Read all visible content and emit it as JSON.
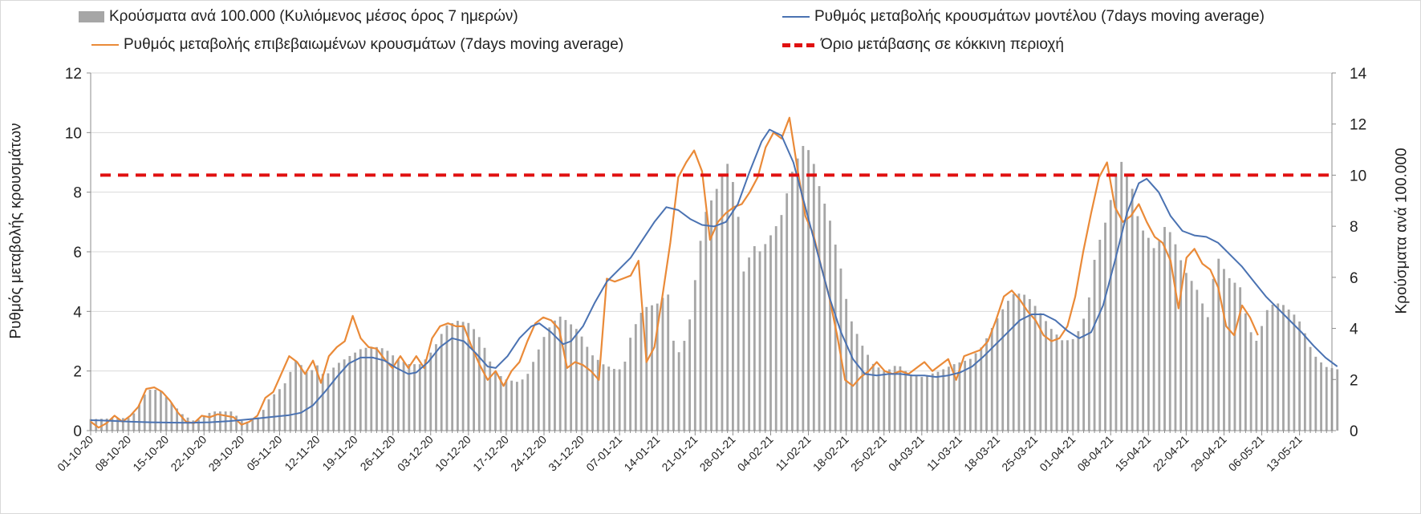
{
  "chart_data": {
    "type": "bar",
    "legend": [
      {
        "key": "bars",
        "label": "Κρούσματα ανά 100.000 (Κυλιόμενος μέσος όρος 7 ημερών)",
        "color": "#a6a6a6"
      },
      {
        "key": "model",
        "label": "Ρυθμός μεταβολής κρουσμάτων μοντέλου (7days moving average)",
        "color": "#4a72b2"
      },
      {
        "key": "confirmed",
        "label": "Ρυθμός μεταβολής επιβεβαιωμένων κρουσμάτων (7days moving average)",
        "color": "#ea8a38"
      },
      {
        "key": "threshold",
        "label": "Όριο μετάβασης σε κόκκινη περιοχή",
        "color": "#e01010"
      }
    ],
    "ylabel_left": "Ρυθμός μεταβολής κρουσμάτων",
    "ylabel_right": "Κρούσματα ανά 100.000",
    "ylim_left": [
      0,
      12
    ],
    "ylim_right": [
      0,
      14
    ],
    "yticks_left": [
      "0",
      "2",
      "4",
      "6",
      "8",
      "10",
      "12"
    ],
    "yticks_right": [
      "0",
      "2",
      "4",
      "6",
      "8",
      "10",
      "12",
      "14"
    ],
    "xtick_labels": [
      "01-10-20",
      "08-10-20",
      "15-10-20",
      "22-10-20",
      "29-10-20",
      "05-11-20",
      "12-11-20",
      "19-11-20",
      "26-11-20",
      "03-12-20",
      "10-12-20",
      "17-12-20",
      "24-12-20",
      "31-12-20",
      "07-01-21",
      "14-01-21",
      "21-01-21",
      "28-01-21",
      "04-02-21",
      "11-02-21",
      "18-02-21",
      "25-02-21",
      "04-03-21",
      "11-03-21",
      "18-03-21",
      "25-03-21",
      "01-04-21",
      "08-04-21",
      "15-04-21",
      "22-04-21",
      "29-04-21",
      "06-05-21",
      "13-05-21"
    ],
    "days": 232,
    "threshold_right_axis": 10,
    "bars_knots": [
      [
        0,
        0.45
      ],
      [
        10,
        0.5
      ],
      [
        12,
        1.0
      ],
      [
        14,
        1.6
      ],
      [
        17,
        1.6
      ],
      [
        20,
        1.1
      ],
      [
        23,
        0.6
      ],
      [
        26,
        0.35
      ],
      [
        30,
        0.75
      ],
      [
        35,
        0.75
      ],
      [
        38,
        0.3
      ],
      [
        42,
        0.55
      ],
      [
        44,
        1.2
      ],
      [
        48,
        1.8
      ],
      [
        51,
        2.8
      ],
      [
        54,
        2.2
      ],
      [
        56,
        2.6
      ],
      [
        58,
        2.1
      ],
      [
        61,
        2.6
      ],
      [
        64,
        2.9
      ],
      [
        67,
        3.2
      ],
      [
        70,
        3.3
      ],
      [
        73,
        3.2
      ],
      [
        76,
        2.8
      ],
      [
        79,
        2.6
      ],
      [
        82,
        2.6
      ],
      [
        85,
        3.2
      ],
      [
        88,
        4.1
      ],
      [
        91,
        4.3
      ],
      [
        94,
        4.2
      ],
      [
        97,
        3.5
      ],
      [
        100,
        2.3
      ],
      [
        103,
        2.0
      ],
      [
        106,
        1.9
      ],
      [
        108,
        2.1
      ],
      [
        110,
        2.8
      ],
      [
        113,
        3.9
      ],
      [
        116,
        4.5
      ],
      [
        118,
        4.3
      ],
      [
        121,
        3.9
      ],
      [
        124,
        3.0
      ],
      [
        127,
        2.6
      ],
      [
        130,
        2.4
      ],
      [
        132,
        2.4
      ],
      [
        134,
        3.8
      ],
      [
        137,
        4.8
      ],
      [
        141,
        5.0
      ],
      [
        143,
        5.5
      ],
      [
        145,
        2.8
      ],
      [
        148,
        3.8
      ],
      [
        152,
        8.4
      ],
      [
        155,
        9.4
      ],
      [
        158,
        10.5
      ],
      [
        160,
        9.2
      ],
      [
        162,
        6.0
      ],
      [
        164,
        7.3
      ],
      [
        166,
        7.0
      ],
      [
        168,
        7.5
      ],
      [
        171,
        8.3
      ],
      [
        174,
        10.2
      ],
      [
        177,
        11.3
      ],
      [
        179,
        10.6
      ],
      [
        181,
        9.3
      ],
      [
        183,
        8.4
      ],
      [
        186,
        6.3
      ],
      [
        188,
        4.5
      ],
      [
        191,
        3.4
      ],
      [
        194,
        2.6
      ],
      [
        197,
        2.3
      ],
      [
        200,
        2.6
      ],
      [
        203,
        2.2
      ],
      [
        206,
        2.1
      ],
      [
        210,
        2.3
      ],
      [
        214,
        2.6
      ],
      [
        218,
        2.8
      ],
      [
        221,
        3.3
      ],
      [
        224,
        4.2
      ],
      [
        227,
        5.0
      ],
      [
        229,
        5.4
      ],
      [
        232,
        5.3
      ],
      [
        235,
        4.7
      ],
      [
        238,
        4.0
      ],
      [
        241,
        3.5
      ],
      [
        244,
        3.6
      ],
      [
        247,
        4.7
      ],
      [
        249,
        6.9
      ],
      [
        252,
        8.4
      ],
      [
        255,
        10.7
      ],
      [
        258,
        9.6
      ],
      [
        260,
        8.0
      ],
      [
        262,
        7.6
      ],
      [
        264,
        7.0
      ],
      [
        266,
        8.0
      ],
      [
        268,
        7.7
      ],
      [
        271,
        6.3
      ],
      [
        274,
        5.6
      ],
      [
        277,
        4.4
      ],
      [
        279,
        6.9
      ],
      [
        282,
        6.0
      ],
      [
        285,
        5.6
      ],
      [
        287,
        4.0
      ],
      [
        289,
        3.5
      ],
      [
        292,
        4.9
      ],
      [
        295,
        5.0
      ],
      [
        298,
        4.6
      ],
      [
        300,
        4.2
      ],
      [
        303,
        3.0
      ],
      [
        306,
        2.5
      ],
      [
        309,
        2.4
      ]
    ],
    "model_knots": [
      [
        0,
        0.35
      ],
      [
        5,
        0.33
      ],
      [
        10,
        0.3
      ],
      [
        15,
        0.28
      ],
      [
        20,
        0.27
      ],
      [
        25,
        0.26
      ],
      [
        30,
        0.28
      ],
      [
        35,
        0.32
      ],
      [
        40,
        0.38
      ],
      [
        45,
        0.45
      ],
      [
        50,
        0.52
      ],
      [
        53,
        0.6
      ],
      [
        56,
        0.85
      ],
      [
        59,
        1.3
      ],
      [
        62,
        1.8
      ],
      [
        65,
        2.25
      ],
      [
        68,
        2.45
      ],
      [
        71,
        2.45
      ],
      [
        74,
        2.35
      ],
      [
        77,
        2.1
      ],
      [
        80,
        1.9
      ],
      [
        82,
        1.95
      ],
      [
        85,
        2.3
      ],
      [
        88,
        2.8
      ],
      [
        91,
        3.1
      ],
      [
        94,
        3.0
      ],
      [
        97,
        2.6
      ],
      [
        100,
        2.15
      ],
      [
        102,
        2.1
      ],
      [
        105,
        2.5
      ],
      [
        108,
        3.1
      ],
      [
        111,
        3.5
      ],
      [
        113,
        3.6
      ],
      [
        116,
        3.3
      ],
      [
        119,
        2.9
      ],
      [
        121,
        3.0
      ],
      [
        124,
        3.5
      ],
      [
        127,
        4.3
      ],
      [
        130,
        5.0
      ],
      [
        133,
        5.4
      ],
      [
        136,
        5.8
      ],
      [
        139,
        6.4
      ],
      [
        142,
        7.0
      ],
      [
        145,
        7.5
      ],
      [
        148,
        7.4
      ],
      [
        151,
        7.1
      ],
      [
        154,
        6.9
      ],
      [
        157,
        6.85
      ],
      [
        160,
        7.0
      ],
      [
        163,
        7.6
      ],
      [
        166,
        8.7
      ],
      [
        169,
        9.7
      ],
      [
        171,
        10.1
      ],
      [
        174,
        9.9
      ],
      [
        177,
        9.0
      ],
      [
        180,
        7.5
      ],
      [
        183,
        6.0
      ],
      [
        186,
        4.5
      ],
      [
        189,
        3.3
      ],
      [
        192,
        2.4
      ],
      [
        195,
        1.9
      ],
      [
        198,
        1.85
      ],
      [
        201,
        1.9
      ],
      [
        204,
        1.9
      ],
      [
        207,
        1.85
      ],
      [
        210,
        1.85
      ],
      [
        213,
        1.8
      ],
      [
        216,
        1.85
      ],
      [
        219,
        1.95
      ],
      [
        222,
        2.15
      ],
      [
        225,
        2.5
      ],
      [
        228,
        2.9
      ],
      [
        231,
        3.3
      ],
      [
        234,
        3.7
      ],
      [
        237,
        3.9
      ],
      [
        240,
        3.9
      ],
      [
        243,
        3.7
      ],
      [
        246,
        3.35
      ],
      [
        249,
        3.1
      ],
      [
        252,
        3.3
      ],
      [
        255,
        4.2
      ],
      [
        258,
        5.7
      ],
      [
        261,
        7.3
      ],
      [
        264,
        8.3
      ],
      [
        266,
        8.45
      ],
      [
        269,
        8.0
      ],
      [
        272,
        7.2
      ],
      [
        275,
        6.7
      ],
      [
        278,
        6.55
      ],
      [
        281,
        6.5
      ],
      [
        284,
        6.3
      ],
      [
        287,
        5.9
      ],
      [
        290,
        5.5
      ],
      [
        293,
        5.0
      ],
      [
        296,
        4.5
      ],
      [
        299,
        4.1
      ],
      [
        302,
        3.7
      ],
      [
        305,
        3.3
      ],
      [
        308,
        2.85
      ],
      [
        311,
        2.45
      ],
      [
        314,
        2.15
      ]
    ],
    "confirmed_knots": [
      [
        0,
        0.3
      ],
      [
        2,
        0.1
      ],
      [
        4,
        0.25
      ],
      [
        6,
        0.5
      ],
      [
        8,
        0.3
      ],
      [
        10,
        0.5
      ],
      [
        12,
        0.8
      ],
      [
        14,
        1.4
      ],
      [
        16,
        1.45
      ],
      [
        18,
        1.3
      ],
      [
        20,
        1.0
      ],
      [
        22,
        0.6
      ],
      [
        24,
        0.3
      ],
      [
        26,
        0.25
      ],
      [
        28,
        0.5
      ],
      [
        30,
        0.45
      ],
      [
        32,
        0.55
      ],
      [
        34,
        0.5
      ],
      [
        36,
        0.45
      ],
      [
        38,
        0.2
      ],
      [
        40,
        0.3
      ],
      [
        42,
        0.5
      ],
      [
        44,
        1.1
      ],
      [
        46,
        1.3
      ],
      [
        48,
        1.9
      ],
      [
        50,
        2.5
      ],
      [
        52,
        2.3
      ],
      [
        54,
        1.9
      ],
      [
        56,
        2.35
      ],
      [
        58,
        1.6
      ],
      [
        60,
        2.5
      ],
      [
        62,
        2.8
      ],
      [
        64,
        3.0
      ],
      [
        66,
        3.85
      ],
      [
        68,
        3.1
      ],
      [
        70,
        2.8
      ],
      [
        72,
        2.75
      ],
      [
        74,
        2.4
      ],
      [
        76,
        2.1
      ],
      [
        78,
        2.5
      ],
      [
        80,
        2.1
      ],
      [
        82,
        2.5
      ],
      [
        84,
        2.1
      ],
      [
        86,
        3.1
      ],
      [
        88,
        3.5
      ],
      [
        90,
        3.6
      ],
      [
        92,
        3.5
      ],
      [
        94,
        3.5
      ],
      [
        96,
        2.8
      ],
      [
        98,
        2.2
      ],
      [
        100,
        1.7
      ],
      [
        102,
        2.0
      ],
      [
        104,
        1.5
      ],
      [
        106,
        2.0
      ],
      [
        108,
        2.3
      ],
      [
        110,
        3.0
      ],
      [
        112,
        3.6
      ],
      [
        114,
        3.8
      ],
      [
        116,
        3.7
      ],
      [
        118,
        3.4
      ],
      [
        120,
        2.1
      ],
      [
        122,
        2.3
      ],
      [
        124,
        2.2
      ],
      [
        126,
        2.0
      ],
      [
        128,
        1.7
      ],
      [
        130,
        5.1
      ],
      [
        132,
        5.0
      ],
      [
        134,
        5.1
      ],
      [
        136,
        5.2
      ],
      [
        138,
        5.7
      ],
      [
        140,
        2.3
      ],
      [
        142,
        2.8
      ],
      [
        144,
        4.5
      ],
      [
        146,
        6.3
      ],
      [
        148,
        8.5
      ],
      [
        150,
        9.0
      ],
      [
        152,
        9.4
      ],
      [
        154,
        8.7
      ],
      [
        156,
        6.4
      ],
      [
        158,
        7.0
      ],
      [
        160,
        7.3
      ],
      [
        162,
        7.5
      ],
      [
        164,
        7.6
      ],
      [
        166,
        8.0
      ],
      [
        168,
        8.5
      ],
      [
        170,
        9.5
      ],
      [
        172,
        10.0
      ],
      [
        174,
        9.8
      ],
      [
        176,
        10.5
      ],
      [
        178,
        8.8
      ],
      [
        180,
        7.2
      ],
      [
        182,
        6.6
      ],
      [
        184,
        5.5
      ],
      [
        186,
        4.5
      ],
      [
        188,
        3.2
      ],
      [
        190,
        1.7
      ],
      [
        192,
        1.5
      ],
      [
        194,
        1.8
      ],
      [
        196,
        2.0
      ],
      [
        198,
        2.3
      ],
      [
        200,
        2.0
      ],
      [
        202,
        1.9
      ],
      [
        204,
        2.0
      ],
      [
        206,
        1.9
      ],
      [
        208,
        2.1
      ],
      [
        210,
        2.3
      ],
      [
        212,
        2.0
      ],
      [
        214,
        2.2
      ],
      [
        216,
        2.4
      ],
      [
        218,
        1.7
      ],
      [
        220,
        2.5
      ],
      [
        222,
        2.6
      ],
      [
        224,
        2.7
      ],
      [
        226,
        3.0
      ],
      [
        228,
        3.7
      ],
      [
        230,
        4.5
      ],
      [
        232,
        4.7
      ],
      [
        234,
        4.4
      ],
      [
        236,
        4.0
      ],
      [
        238,
        3.7
      ],
      [
        240,
        3.2
      ],
      [
        242,
        3.0
      ],
      [
        244,
        3.1
      ],
      [
        246,
        3.5
      ],
      [
        248,
        4.5
      ],
      [
        250,
        6.0
      ],
      [
        252,
        7.3
      ],
      [
        254,
        8.5
      ],
      [
        256,
        9.0
      ],
      [
        258,
        7.5
      ],
      [
        260,
        7.0
      ],
      [
        262,
        7.2
      ],
      [
        264,
        7.6
      ],
      [
        266,
        7.0
      ],
      [
        268,
        6.5
      ],
      [
        270,
        6.3
      ],
      [
        272,
        5.7
      ],
      [
        274,
        4.1
      ],
      [
        276,
        5.8
      ],
      [
        278,
        6.1
      ],
      [
        280,
        5.6
      ],
      [
        282,
        5.4
      ],
      [
        284,
        4.8
      ],
      [
        286,
        3.5
      ],
      [
        288,
        3.2
      ],
      [
        290,
        4.2
      ],
      [
        292,
        3.8
      ],
      [
        294,
        3.2
      ]
    ]
  }
}
